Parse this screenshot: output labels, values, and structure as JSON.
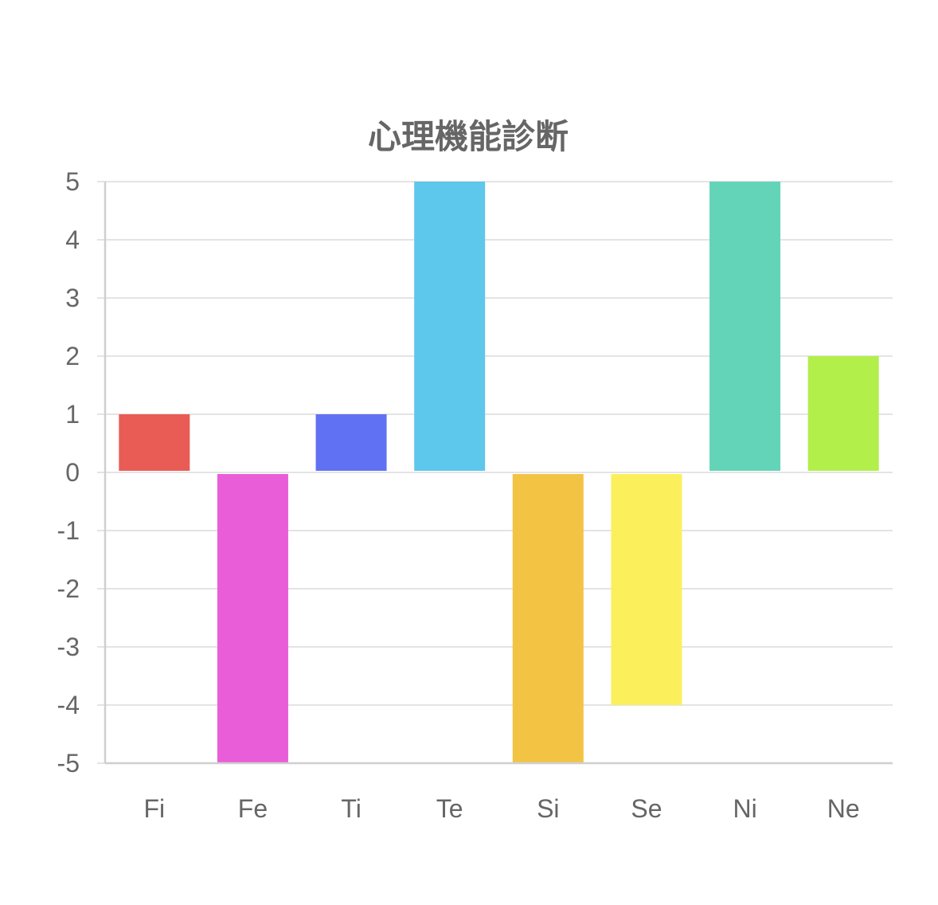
{
  "chart_data": {
    "type": "bar",
    "title": "心理機能診断",
    "categories": [
      "Fi",
      "Fe",
      "Ti",
      "Te",
      "Si",
      "Se",
      "Ni",
      "Ne"
    ],
    "values": [
      1,
      -5,
      1,
      5,
      -5,
      -4,
      5,
      2
    ],
    "colors": [
      "#e95c56",
      "#ea5dd9",
      "#6072f3",
      "#5ec7ec",
      "#f3c344",
      "#fbf05c",
      "#63d4b7",
      "#b2ef4b"
    ],
    "ylim": [
      -5,
      5
    ],
    "yticks": [
      "5",
      "4",
      "3",
      "2",
      "1",
      "0",
      "-1",
      "-2",
      "-3",
      "-4",
      "-5"
    ],
    "xlabel": "",
    "ylabel": "",
    "grid": true,
    "legend": "none"
  }
}
